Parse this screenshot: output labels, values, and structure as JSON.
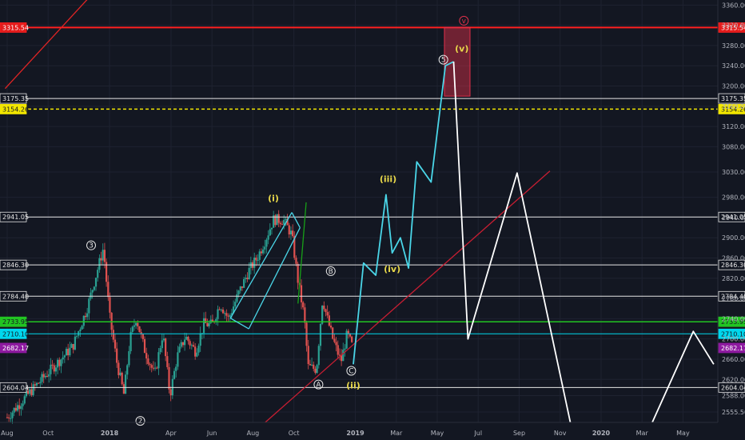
{
  "chart_data": {
    "type": "line",
    "title": "",
    "xlabel": "",
    "ylabel": "",
    "ylim": [
      2535,
      3370
    ],
    "y_ticks": [
      2555.5,
      2588,
      2620,
      2660,
      2700,
      2740,
      2780,
      2820,
      2860,
      2900,
      2940,
      2980,
      3030,
      3080,
      3120,
      3160,
      3200,
      3240,
      3280,
      3320,
      3360
    ],
    "y_tick_labels": [
      "2555.50",
      "2588.00",
      "2620.00",
      "2660.00",
      "2700.00",
      "2740.00",
      "2780.00",
      "2820.00",
      "2860.00",
      "2900.00",
      "2940.00",
      "2980.00",
      "3030.00",
      "3080.00",
      "3120.00",
      "3160.00",
      "3200.00",
      "3240.00",
      "3280.00",
      "3320.00",
      "3360.00"
    ],
    "x_ticks": [
      {
        "label": "Aug",
        "t": 0
      },
      {
        "label": "Oct",
        "t": 2
      },
      {
        "label": "2018",
        "t": 5
      },
      {
        "label": "Apr",
        "t": 8
      },
      {
        "label": "Jun",
        "t": 10
      },
      {
        "label": "Aug",
        "t": 12
      },
      {
        "label": "Oct",
        "t": 14
      },
      {
        "label": "2019",
        "t": 17
      },
      {
        "label": "Mar",
        "t": 19
      },
      {
        "label": "May",
        "t": 21
      },
      {
        "label": "Jul",
        "t": 23
      },
      {
        "label": "Sep",
        "t": 25
      },
      {
        "label": "Nov",
        "t": 27
      },
      {
        "label": "2020",
        "t": 29
      },
      {
        "label": "Mar",
        "t": 31
      },
      {
        "label": "May",
        "t": 33
      }
    ],
    "price_levels": [
      {
        "value": 3315.54,
        "label": "3315.54",
        "color": "#ff2020",
        "bg": "#e41b1b",
        "fg": "#ffffff",
        "width": 2,
        "dash": ""
      },
      {
        "value": 3175.35,
        "label": "3175.35",
        "color": "#e6e6e6",
        "bg": "#131722",
        "fg": "#e6e6e6",
        "width": 1,
        "dash": ""
      },
      {
        "value": 3154.26,
        "label": "3154.26",
        "color": "#f2e600",
        "bg": "#f2e600",
        "fg": "#131722",
        "width": 1.5,
        "dash": "4,3"
      },
      {
        "value": 2941.05,
        "label": "2941.05",
        "color": "#e6e6e6",
        "bg": "#131722",
        "fg": "#e6e6e6",
        "width": 1,
        "dash": ""
      },
      {
        "value": 2846.3,
        "label": "2846.30",
        "color": "#e6e6e6",
        "bg": "#131722",
        "fg": "#e6e6e6",
        "width": 1,
        "dash": ""
      },
      {
        "value": 2784.4,
        "label": "2784.40",
        "color": "#e6e6e6",
        "bg": "#131722",
        "fg": "#e6e6e6",
        "width": 1,
        "dash": ""
      },
      {
        "value": 2733.95,
        "label": "2733.95",
        "color": "#22c422",
        "bg": "#22c422",
        "fg": "#131722",
        "width": 1.5,
        "dash": ""
      },
      {
        "value": 2710.1,
        "label": "2710.10",
        "color": "#00d8ee",
        "bg": "#00d8ee",
        "fg": "#131722",
        "width": 1,
        "dash": ""
      },
      {
        "value": 2682.17,
        "label": "2682.17",
        "color": "#8e1aa0",
        "bg": "#8e1aa0",
        "fg": "#ffffff",
        "width": 0,
        "dash": ""
      },
      {
        "value": 2604.04,
        "label": "2604.04",
        "color": "#e6e6e6",
        "bg": "#131722",
        "fg": "#e6e6e6",
        "width": 1,
        "dash": ""
      }
    ],
    "series": [
      {
        "color": "#4ad6e8",
        "points": [
          [
            16.9,
            2650
          ],
          [
            17.4,
            2850
          ],
          [
            18.0,
            2826
          ],
          [
            18.5,
            2985
          ],
          [
            18.8,
            2870
          ],
          [
            19.2,
            2900
          ],
          [
            19.6,
            2840
          ],
          [
            20.0,
            3050
          ],
          [
            20.7,
            3010
          ],
          [
            21.4,
            3240
          ],
          [
            21.8,
            3248
          ]
        ]
      },
      {
        "color": "#ffffff",
        "points": [
          [
            21.8,
            3248
          ],
          [
            22.5,
            2700
          ],
          [
            24.9,
            3028
          ],
          [
            27.5,
            2535
          ]
        ]
      },
      {
        "color": "#ffffff",
        "points": [
          [
            31.5,
            2535
          ],
          [
            33.5,
            2715
          ],
          [
            34.5,
            2650
          ]
        ]
      }
    ],
    "candles": {
      "up_color": "#2aa192",
      "down_color": "#e0514f",
      "path": [
        [
          0.0,
          2545
        ],
        [
          1.5,
          2612
        ],
        [
          3.2,
          2685
        ],
        [
          3.9,
          2760
        ],
        [
          4.7,
          2880
        ],
        [
          5.0,
          2745
        ],
        [
          5.35,
          2655
        ],
        [
          5.7,
          2590
        ],
        [
          6.0,
          2700
        ],
        [
          6.3,
          2742
        ],
        [
          6.7,
          2680
        ],
        [
          7.2,
          2628
        ],
        [
          7.6,
          2712
        ],
        [
          7.95,
          2588
        ],
        [
          8.3,
          2665
        ],
        [
          8.7,
          2705
        ],
        [
          9.2,
          2675
        ],
        [
          9.6,
          2730
        ],
        [
          10.0,
          2728
        ],
        [
          10.4,
          2770
        ],
        [
          10.8,
          2740
        ],
        [
          11.3,
          2790
        ],
        [
          11.8,
          2835
        ],
        [
          12.2,
          2860
        ],
        [
          12.6,
          2895
        ],
        [
          13.0,
          2936
        ],
        [
          13.5,
          2935
        ],
        [
          13.9,
          2905
        ],
        [
          14.2,
          2815
        ],
        [
          14.5,
          2745
        ],
        [
          14.7,
          2645
        ],
        [
          15.1,
          2640
        ],
        [
          15.4,
          2780
        ],
        [
          15.6,
          2745
        ],
        [
          15.9,
          2700
        ],
        [
          16.3,
          2655
        ],
        [
          16.6,
          2710
        ],
        [
          16.9,
          2680
        ]
      ]
    },
    "channel_lines": [
      {
        "color": "#4ad6e8",
        "points": [
          [
            10.9,
            2741
          ],
          [
            13.9,
            2950
          ]
        ]
      },
      {
        "color": "#4ad6e8",
        "points": [
          [
            11.8,
            2720
          ],
          [
            14.3,
            2920
          ]
        ]
      },
      {
        "color": "#4ad6e8",
        "points": [
          [
            10.9,
            2741
          ],
          [
            11.8,
            2720
          ]
        ]
      },
      {
        "color": "#4ad6e8",
        "points": [
          [
            13.9,
            2950
          ],
          [
            14.3,
            2920
          ]
        ]
      },
      {
        "color": "#c81e32",
        "points": [
          [
            12.6,
            2535
          ],
          [
            26.5,
            3032
          ]
        ]
      },
      {
        "color": "#e02424",
        "points": [
          [
            -0.1,
            3195
          ],
          [
            4.0,
            3375
          ]
        ]
      },
      {
        "color": "#18a018",
        "points": [
          [
            14.2,
            2770
          ],
          [
            14.6,
            2970
          ]
        ]
      }
    ],
    "target_box": {
      "t1": 21.35,
      "t2": 22.6,
      "v1": 3316,
      "v2": 3180,
      "color": "#e0304a"
    },
    "wave_labels": [
      {
        "text": "(i)",
        "t": 13.0,
        "v": 2972,
        "color": "#e8d84a"
      },
      {
        "text": "(iii)",
        "t": 18.6,
        "v": 3010,
        "color": "#e8d84a"
      },
      {
        "text": "(iv)",
        "t": 18.8,
        "v": 2832,
        "color": "#e8d84a"
      },
      {
        "text": "(v)",
        "t": 22.2,
        "v": 3268,
        "color": "#e8d84a"
      },
      {
        "text": "(ii)",
        "t": 16.9,
        "v": 2602,
        "color": "#e8d84a"
      }
    ],
    "circled_labels": [
      {
        "text": "3",
        "t": 4.1,
        "v": 2885,
        "color": "#e6e6e6"
      },
      {
        "text": "5",
        "t": 21.3,
        "v": 3252,
        "color": "#e6e6e6"
      },
      {
        "text": "v",
        "t": 22.3,
        "v": 3329,
        "color": "#e0304a"
      },
      {
        "text": "B",
        "t": 15.8,
        "v": 2834,
        "color": "#e6e6e6"
      },
      {
        "text": "A",
        "t": 15.2,
        "v": 2610,
        "color": "#e6e6e6"
      },
      {
        "text": "C",
        "t": 16.8,
        "v": 2637,
        "color": "#e6e6e6"
      },
      {
        "text": "2",
        "t": 6.5,
        "v": 2538,
        "color": "#e6e6e6"
      }
    ]
  }
}
